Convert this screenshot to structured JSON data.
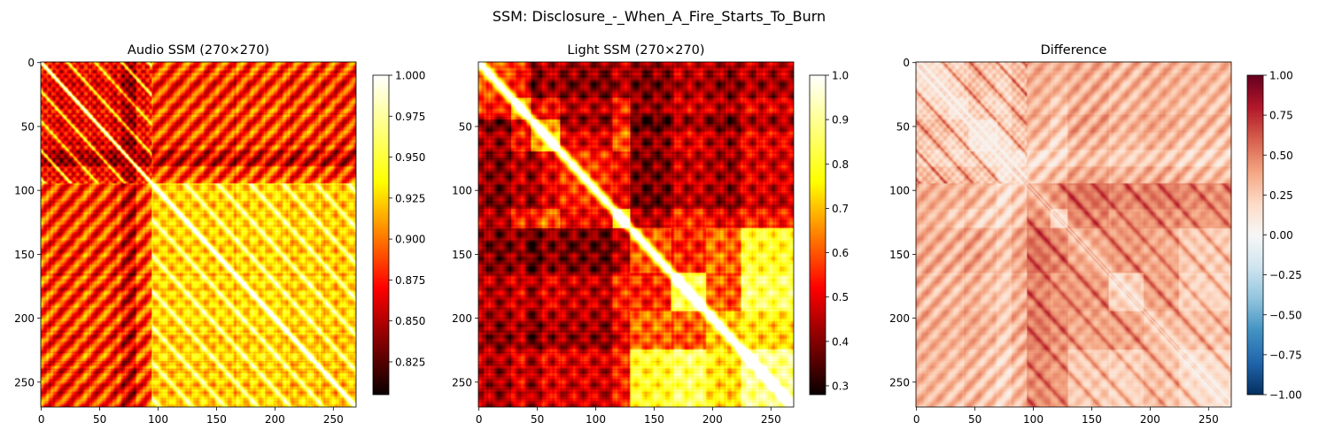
{
  "figure": {
    "suptitle": "SSM: Disclosure_-_When_A_Fire_Starts_To_Burn"
  },
  "colormaps": {
    "hot": [
      "#0b0000",
      "#ff0000",
      "#ffff00",
      "#ffffff"
    ],
    "rdbu_r": [
      "#053061",
      "#2166ac",
      "#4393c3",
      "#92c5de",
      "#d1e5f0",
      "#f7f7f7",
      "#fddbc7",
      "#f4a582",
      "#d6604d",
      "#b2182b",
      "#67001f"
    ]
  },
  "chart_data": [
    {
      "type": "heatmap",
      "title": "Audio SSM (270×270)",
      "matrix_size": 270,
      "colormap": "hot",
      "vmin": 0.805,
      "vmax": 1.0,
      "xticks": [
        0,
        50,
        100,
        150,
        200,
        250
      ],
      "yticks": [
        0,
        50,
        100,
        150,
        200,
        250
      ],
      "colorbar_ticks": [
        0.825,
        0.85,
        0.875,
        0.9,
        0.925,
        0.95,
        0.975,
        1.0
      ],
      "colorbar_labels": [
        "0.825",
        "0.850",
        "0.875",
        "0.900",
        "0.925",
        "0.950",
        "0.975",
        "1.000"
      ]
    },
    {
      "type": "heatmap",
      "title": "Light SSM (270×270)",
      "matrix_size": 270,
      "colormap": "hot",
      "vmin": 0.28,
      "vmax": 1.0,
      "xticks": [
        0,
        50,
        100,
        150,
        200,
        250
      ],
      "yticks": [
        50,
        100,
        150,
        200,
        250
      ],
      "colorbar_ticks": [
        0.3,
        0.4,
        0.5,
        0.6,
        0.7,
        0.8,
        0.9,
        1.0
      ],
      "colorbar_labels": [
        "0.3",
        "0.4",
        "0.5",
        "0.6",
        "0.7",
        "0.8",
        "0.9",
        "1.0"
      ]
    },
    {
      "type": "heatmap",
      "title": "Difference",
      "matrix_size": 270,
      "colormap": "rdbu_r",
      "vmin": -1.0,
      "vmax": 1.0,
      "xticks": [
        0,
        50,
        100,
        150,
        200,
        250
      ],
      "yticks": [
        0,
        50,
        100,
        150,
        200,
        250
      ],
      "colorbar_ticks": [
        -1.0,
        -0.75,
        -0.5,
        -0.25,
        0.0,
        0.25,
        0.5,
        0.75,
        1.0
      ],
      "colorbar_labels": [
        "−1.00",
        "−0.75",
        "−0.50",
        "−0.25",
        "0.00",
        "0.25",
        "0.50",
        "0.75",
        "1.00"
      ]
    }
  ]
}
